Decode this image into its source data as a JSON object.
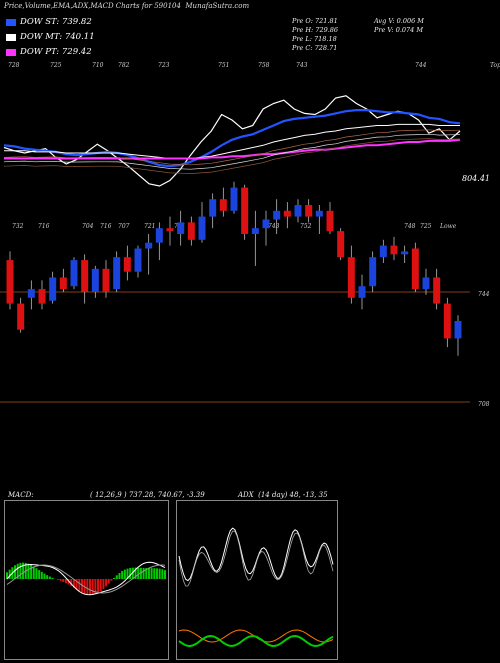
{
  "header": {
    "title": "Price,Volume,EMA,ADX,MACD Charts for 590104",
    "site": "MunafaSutra.com"
  },
  "legend": [
    {
      "label": "DOW ST:",
      "value": "739.82",
      "color": "#2255ff"
    },
    {
      "label": "DOW MT:",
      "value": "740.11",
      "color": "#ffffff"
    },
    {
      "label": "DOW PT:",
      "value": "729.42",
      "color": "#ff33ff"
    }
  ],
  "ohlc": {
    "open": "Pre   O: 721.81",
    "high": "Pre   H: 729.86",
    "low": "Pre   L: 718.18",
    "close": "Pre   C: 728.71",
    "avg_vol": "Avg V: 0.006   M",
    "pre_vol": "Pre   V: 0.074   M"
  },
  "chart_data": [
    {
      "type": "line",
      "name": "price-ema",
      "top_labels": [
        "728",
        "725",
        "710",
        "782",
        "723",
        "751",
        "758",
        "743",
        "744",
        "Tope"
      ],
      "bottom_labels": [
        "732",
        "716",
        "704",
        "716",
        "707",
        "721",
        "751",
        "743",
        "752",
        "748",
        "725",
        "Lowe"
      ],
      "price_label": "804.41",
      "series": [
        {
          "name": "price",
          "color": "#ffffff",
          "values": [
            755,
            752,
            750,
            752,
            754,
            746,
            740,
            744,
            751,
            758,
            752,
            745,
            738,
            730,
            722,
            720,
            725,
            735,
            748,
            760,
            770,
            785,
            780,
            772,
            775,
            790,
            795,
            798,
            790,
            786,
            785,
            790,
            800,
            802,
            795,
            790,
            782,
            785,
            788,
            786,
            780,
            768,
            772,
            762,
            770
          ]
        },
        {
          "name": "ema-st",
          "color": "#2255ff",
          "values": [
            757,
            756,
            754,
            753,
            752,
            751,
            749,
            748,
            749,
            750,
            751,
            750,
            748,
            745,
            742,
            739,
            738,
            739,
            742,
            746,
            751,
            757,
            762,
            765,
            767,
            771,
            775,
            779,
            781,
            782,
            783,
            784,
            786,
            788,
            789,
            789,
            788,
            787,
            787,
            786,
            785,
            782,
            781,
            778,
            777
          ]
        },
        {
          "name": "ema-mt",
          "color": "#ffffff",
          "values": [
            752,
            752,
            752,
            751,
            751,
            751,
            750,
            750,
            750,
            750,
            750,
            750,
            749,
            748,
            747,
            746,
            745,
            745,
            745,
            746,
            747,
            749,
            751,
            753,
            755,
            757,
            760,
            762,
            764,
            766,
            767,
            769,
            770,
            772,
            773,
            774,
            775,
            775,
            776,
            776,
            776,
            776,
            775,
            775,
            775
          ]
        },
        {
          "name": "ema-pt",
          "color": "#ff33ff",
          "values": [
            745,
            745,
            745,
            745,
            745,
            745,
            745,
            745,
            745,
            745,
            745,
            745,
            745,
            745,
            745,
            745,
            745,
            745,
            745,
            745,
            746,
            746,
            747,
            747,
            748,
            749,
            749,
            750,
            751,
            752,
            753,
            753,
            754,
            755,
            756,
            757,
            757,
            758,
            759,
            760,
            760,
            761,
            761,
            761,
            762
          ]
        }
      ]
    },
    {
      "type": "candlestick",
      "name": "price-candles",
      "right_labels": [
        "744",
        "708"
      ],
      "candles": [
        {
          "o": 755,
          "h": 758,
          "l": 738,
          "c": 740
        },
        {
          "o": 740,
          "h": 742,
          "l": 730,
          "c": 731
        },
        {
          "o": 742,
          "h": 748,
          "l": 738,
          "c": 745
        },
        {
          "o": 745,
          "h": 748,
          "l": 738,
          "c": 740
        },
        {
          "o": 741,
          "h": 751,
          "l": 740,
          "c": 749
        },
        {
          "o": 749,
          "h": 752,
          "l": 744,
          "c": 745
        },
        {
          "o": 746,
          "h": 756,
          "l": 745,
          "c": 755
        },
        {
          "o": 755,
          "h": 757,
          "l": 740,
          "c": 744
        },
        {
          "o": 744,
          "h": 753,
          "l": 742,
          "c": 752
        },
        {
          "o": 752,
          "h": 755,
          "l": 742,
          "c": 744
        },
        {
          "o": 745,
          "h": 758,
          "l": 744,
          "c": 756
        },
        {
          "o": 756,
          "h": 760,
          "l": 748,
          "c": 751
        },
        {
          "o": 751,
          "h": 760,
          "l": 749,
          "c": 759
        },
        {
          "o": 759,
          "h": 764,
          "l": 750,
          "c": 761
        },
        {
          "o": 761,
          "h": 768,
          "l": 755,
          "c": 766
        },
        {
          "o": 766,
          "h": 770,
          "l": 760,
          "c": 765
        },
        {
          "o": 764,
          "h": 772,
          "l": 760,
          "c": 768
        },
        {
          "o": 768,
          "h": 770,
          "l": 760,
          "c": 762
        },
        {
          "o": 762,
          "h": 775,
          "l": 761,
          "c": 770
        },
        {
          "o": 770,
          "h": 778,
          "l": 766,
          "c": 776
        },
        {
          "o": 776,
          "h": 780,
          "l": 770,
          "c": 772
        },
        {
          "o": 772,
          "h": 782,
          "l": 771,
          "c": 780
        },
        {
          "o": 780,
          "h": 781,
          "l": 762,
          "c": 764
        },
        {
          "o": 764,
          "h": 772,
          "l": 753,
          "c": 766
        },
        {
          "o": 766,
          "h": 772,
          "l": 760,
          "c": 769
        },
        {
          "o": 769,
          "h": 776,
          "l": 764,
          "c": 772
        },
        {
          "o": 772,
          "h": 775,
          "l": 766,
          "c": 770
        },
        {
          "o": 770,
          "h": 776,
          "l": 768,
          "c": 774
        },
        {
          "o": 774,
          "h": 776,
          "l": 768,
          "c": 770
        },
        {
          "o": 770,
          "h": 774,
          "l": 764,
          "c": 772
        },
        {
          "o": 772,
          "h": 775,
          "l": 764,
          "c": 765
        },
        {
          "o": 765,
          "h": 766,
          "l": 755,
          "c": 756
        },
        {
          "o": 756,
          "h": 760,
          "l": 740,
          "c": 742
        },
        {
          "o": 742,
          "h": 750,
          "l": 738,
          "c": 746
        },
        {
          "o": 746,
          "h": 758,
          "l": 744,
          "c": 756
        },
        {
          "o": 756,
          "h": 762,
          "l": 754,
          "c": 760
        },
        {
          "o": 760,
          "h": 763,
          "l": 755,
          "c": 757
        },
        {
          "o": 757,
          "h": 760,
          "l": 754,
          "c": 758
        },
        {
          "o": 759,
          "h": 761,
          "l": 744,
          "c": 745
        },
        {
          "o": 745,
          "h": 752,
          "l": 743,
          "c": 749
        },
        {
          "o": 749,
          "h": 752,
          "l": 738,
          "c": 740
        },
        {
          "o": 740,
          "h": 742,
          "l": 725,
          "c": 728
        },
        {
          "o": 728,
          "h": 736,
          "l": 722,
          "c": 734
        }
      ]
    }
  ],
  "macd": {
    "label": "MACD:",
    "values_text": "( 12,26,9 ) 737.28,  740.67, -3.39",
    "adx_label": "ADX",
    "adx_text": "(14  day) 48, -13,  35"
  },
  "colors": {
    "background": "#000000",
    "bull": "#1a44dd",
    "bear": "#dd1111",
    "macd_pos": "#00cc00",
    "macd_neg": "#dd1111",
    "adx_line": "#00cc00",
    "adx_neg": "#ff7700"
  }
}
